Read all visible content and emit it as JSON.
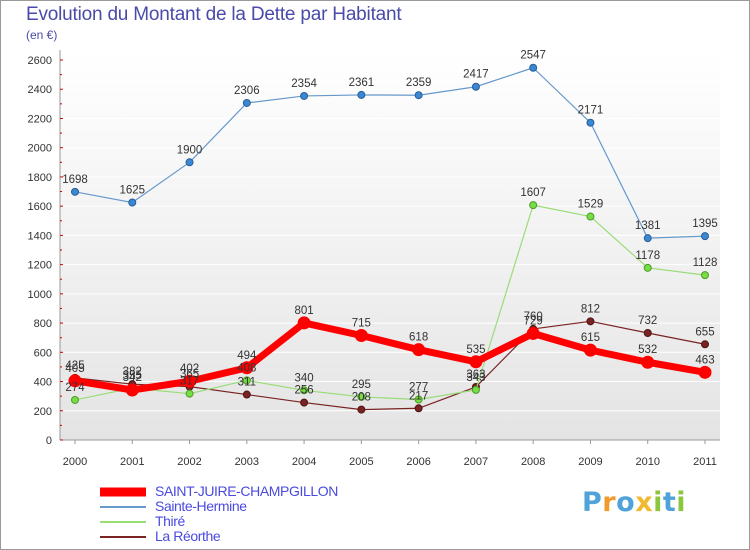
{
  "title": "Evolution du Montant de la Dette par Habitant",
  "subtitle": "(en €)",
  "brand": {
    "letters": [
      "P",
      "r",
      "o",
      "x",
      "i",
      "t",
      "i"
    ],
    "colors": [
      "#4fa3d8",
      "#f29a2e",
      "#4fa3d8",
      "#f2b82e",
      "#8cc63f",
      "#4fa3d8",
      "#8cc63f"
    ]
  },
  "chart_data": {
    "type": "line",
    "title": "Evolution du Montant de la Dette par Habitant",
    "ylabel": "(en €)",
    "xlabel": "",
    "ylim": [
      0,
      2600
    ],
    "yticks": [
      "0",
      "200",
      "400",
      "600",
      "800",
      "1000",
      "1200",
      "1400",
      "1600",
      "1800",
      "2000",
      "2200",
      "2400",
      "2600"
    ],
    "categories": [
      "2000",
      "2001",
      "2002",
      "2003",
      "2004",
      "2005",
      "2006",
      "2007",
      "2008",
      "2009",
      "2010",
      "2011"
    ],
    "grid": "horizontal",
    "legend_position": "bottom",
    "series": [
      {
        "name": "La Réorthe",
        "color": "#7a2323",
        "values": [
          425,
          382,
          365,
          311,
          256,
          208,
          217,
          363,
          760,
          812,
          732,
          655
        ],
        "labels": [
          "425",
          "382",
          "365",
          "311",
          "256",
          "208",
          "217",
          "363",
          "760",
          "812",
          "732",
          "655"
        ]
      },
      {
        "name": "Thiré",
        "color": "#99dd77",
        "values": [
          274,
          355,
          317,
          408,
          340,
          295,
          277,
          343,
          1607,
          1529,
          1178,
          1128
        ],
        "labels": [
          "274",
          "355",
          "317",
          "408",
          "340",
          "295",
          "277",
          "343",
          "1607",
          "1529",
          "1178",
          "1128"
        ]
      },
      {
        "name": "Sainte-Hermine",
        "color": "#6699cc",
        "values": [
          1698,
          1625,
          1900,
          2306,
          2354,
          2361,
          2359,
          2417,
          2547,
          2171,
          1381,
          1395
        ],
        "labels": [
          "1698",
          "1625",
          "1900",
          "2306",
          "2354",
          "2361",
          "2359",
          "2417",
          "2547",
          "2171",
          "1381",
          "1395"
        ]
      },
      {
        "name": "SAINT-JUIRE-CHAMPGILLON",
        "color": "#ff0000",
        "values": [
          405,
          342,
          402,
          494,
          801,
          715,
          618,
          535,
          729,
          615,
          532,
          463
        ],
        "labels": [
          "405",
          "342",
          "402",
          "494",
          "801",
          "715",
          "618",
          "535",
          "729",
          "615",
          "532",
          "463"
        ]
      }
    ],
    "legend_order": [
      "SAINT-JUIRE-CHAMPGILLON",
      "Sainte-Hermine",
      "Thiré",
      "La Réorthe"
    ]
  }
}
